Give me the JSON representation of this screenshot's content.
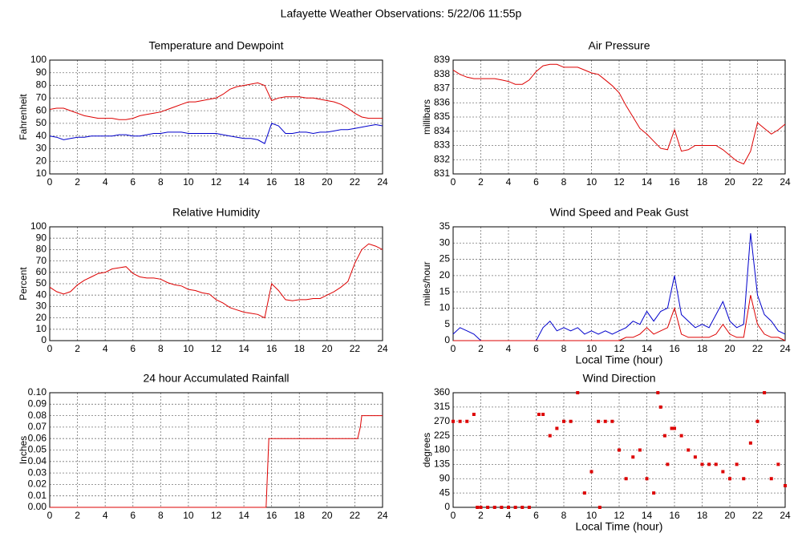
{
  "title": "Lafayette Weather Observations: 5/22/06 11:55p",
  "chart_data": [
    {
      "type": "line",
      "title": "Temperature and Dewpoint",
      "ylabel": "Fahrenheit",
      "x": [
        0,
        0.5,
        1,
        1.5,
        2,
        2.5,
        3,
        3.5,
        4,
        4.5,
        5,
        5.5,
        6,
        6.5,
        7,
        7.5,
        8,
        8.5,
        9,
        9.5,
        10,
        10.5,
        11,
        11.5,
        12,
        12.5,
        13,
        13.5,
        14,
        14.5,
        15,
        15.5,
        16,
        16.5,
        17,
        17.5,
        18,
        18.5,
        19,
        19.5,
        20,
        20.5,
        21,
        21.5,
        22,
        22.5,
        23,
        23.5,
        24
      ],
      "series": [
        {
          "color": "#dd0000",
          "values": [
            61,
            62,
            62,
            60,
            58,
            56,
            55,
            54,
            54,
            54,
            53,
            53,
            54,
            56,
            57,
            58,
            59,
            61,
            63,
            65,
            67,
            67,
            68,
            69,
            70,
            73,
            77,
            79,
            80,
            81,
            82,
            80,
            68,
            70,
            71,
            71,
            71,
            70,
            70,
            69,
            68,
            67,
            65,
            62,
            58,
            55,
            54,
            54,
            54
          ]
        },
        {
          "color": "#0000cc",
          "values": [
            40,
            39,
            37,
            38,
            39,
            39,
            40,
            40,
            40,
            40,
            41,
            41,
            40,
            40,
            41,
            42,
            42,
            43,
            43,
            43,
            42,
            42,
            42,
            42,
            42,
            41,
            40,
            39,
            38,
            38,
            37,
            34,
            50,
            48,
            42,
            42,
            43,
            43,
            42,
            43,
            43,
            44,
            45,
            45,
            46,
            47,
            48,
            49,
            48
          ]
        }
      ],
      "xlim": [
        0,
        24
      ],
      "xticks": [
        0,
        2,
        4,
        6,
        8,
        10,
        12,
        14,
        16,
        18,
        20,
        22,
        24
      ],
      "ylim": [
        10,
        100
      ],
      "yticks": [
        10,
        20,
        30,
        40,
        50,
        60,
        70,
        80,
        90,
        100
      ],
      "grid": true
    },
    {
      "type": "line",
      "title": "Air Pressure",
      "ylabel": "millibars",
      "x": [
        0,
        0.5,
        1,
        1.5,
        2,
        2.5,
        3,
        3.5,
        4,
        4.5,
        5,
        5.5,
        6,
        6.5,
        7,
        7.5,
        8,
        8.5,
        9,
        9.5,
        10,
        10.5,
        11,
        11.5,
        12,
        12.5,
        13,
        13.5,
        14,
        14.5,
        15,
        15.5,
        16,
        16.5,
        17,
        17.5,
        18,
        18.5,
        19,
        19.5,
        20,
        20.5,
        21,
        21.5,
        22,
        22.5,
        23,
        23.5,
        24
      ],
      "series": [
        {
          "color": "#dd0000",
          "values": [
            838.3,
            838.0,
            837.8,
            837.7,
            837.7,
            837.7,
            837.7,
            837.6,
            837.5,
            837.3,
            837.3,
            837.6,
            838.2,
            838.6,
            838.7,
            838.7,
            838.5,
            838.5,
            838.5,
            838.3,
            838.1,
            838.0,
            837.6,
            837.2,
            836.7,
            835.8,
            835.0,
            834.2,
            833.8,
            833.3,
            832.8,
            832.7,
            834.1,
            832.6,
            832.7,
            833.0,
            833.0,
            833.0,
            833.0,
            832.7,
            832.3,
            831.9,
            831.7,
            832.6,
            834.6,
            834.2,
            833.8,
            834.1,
            834.5
          ]
        }
      ],
      "xlim": [
        0,
        24
      ],
      "xticks": [
        0,
        2,
        4,
        6,
        8,
        10,
        12,
        14,
        16,
        18,
        20,
        22,
        24
      ],
      "ylim": [
        831,
        839
      ],
      "yticks": [
        831,
        832,
        833,
        834,
        835,
        836,
        837,
        838,
        839
      ],
      "grid": true
    },
    {
      "type": "line",
      "title": "Relative Humidity",
      "ylabel": "Percent",
      "x": [
        0,
        0.5,
        1,
        1.5,
        2,
        2.5,
        3,
        3.5,
        4,
        4.5,
        5,
        5.5,
        6,
        6.5,
        7,
        7.5,
        8,
        8.5,
        9,
        9.5,
        10,
        10.5,
        11,
        11.5,
        12,
        12.5,
        13,
        13.5,
        14,
        14.5,
        15,
        15.5,
        16,
        16.5,
        17,
        17.5,
        18,
        18.5,
        19,
        19.5,
        20,
        20.5,
        21,
        21.5,
        22,
        22.5,
        23,
        23.5,
        24
      ],
      "series": [
        {
          "color": "#dd0000",
          "values": [
            47,
            43,
            41,
            43,
            49,
            53,
            56,
            59,
            60,
            63,
            64,
            65,
            59,
            56,
            55,
            55,
            54,
            51,
            49,
            48,
            45,
            44,
            42,
            41,
            36,
            33,
            29,
            27,
            25,
            24,
            23,
            20,
            50,
            44,
            36,
            35,
            36,
            36,
            37,
            37,
            40,
            43,
            47,
            52,
            68,
            80,
            85,
            83,
            80
          ]
        }
      ],
      "xlim": [
        0,
        24
      ],
      "xticks": [
        0,
        2,
        4,
        6,
        8,
        10,
        12,
        14,
        16,
        18,
        20,
        22,
        24
      ],
      "ylim": [
        0,
        100
      ],
      "yticks": [
        0,
        10,
        20,
        30,
        40,
        50,
        60,
        70,
        80,
        90,
        100
      ],
      "grid": true
    },
    {
      "type": "line",
      "title": "Wind Speed and Peak Gust",
      "ylabel": "miles/hour",
      "xlabel": "Local Time (hour)",
      "x": [
        0,
        0.5,
        1,
        1.5,
        2,
        2.5,
        3,
        3.5,
        4,
        4.5,
        5,
        5.5,
        6,
        6.5,
        7,
        7.5,
        8,
        8.5,
        9,
        9.5,
        10,
        10.5,
        11,
        11.5,
        12,
        12.5,
        13,
        13.5,
        14,
        14.5,
        15,
        15.5,
        16,
        16.5,
        17,
        17.5,
        18,
        18.5,
        19,
        19.5,
        20,
        20.5,
        21,
        21.5,
        22,
        22.5,
        23,
        23.5,
        24
      ],
      "series": [
        {
          "color": "#0000cc",
          "values": [
            2,
            4,
            3,
            2,
            0,
            0,
            0,
            0,
            0,
            0,
            0,
            0,
            0,
            4,
            6,
            3,
            4,
            3,
            4,
            2,
            3,
            2,
            3,
            2,
            3,
            4,
            6,
            5,
            9,
            6,
            9,
            10,
            20,
            8,
            6,
            4,
            5,
            4,
            8,
            12,
            6,
            4,
            5,
            33,
            14,
            8,
            6,
            3,
            2
          ]
        },
        {
          "color": "#dd0000",
          "values": [
            0,
            0,
            0,
            0,
            0,
            0,
            0,
            0,
            0,
            0,
            0,
            0,
            0,
            0,
            0,
            0,
            0,
            0,
            0,
            0,
            0,
            0,
            0,
            0,
            0,
            1,
            1,
            2,
            4,
            2,
            3,
            4,
            10,
            2,
            1,
            1,
            1,
            1,
            2,
            5,
            2,
            1,
            1,
            14,
            5,
            2,
            1,
            1,
            0
          ]
        }
      ],
      "xlim": [
        0,
        24
      ],
      "xticks": [
        0,
        2,
        4,
        6,
        8,
        10,
        12,
        14,
        16,
        18,
        20,
        22,
        24
      ],
      "ylim": [
        0,
        35
      ],
      "yticks": [
        0,
        5,
        10,
        15,
        20,
        25,
        30,
        35
      ],
      "grid": true
    },
    {
      "type": "line",
      "title": "24 hour Accumulated Rainfall",
      "ylabel": "Inches",
      "x": [
        0,
        15.6,
        15.8,
        22.2,
        22.4,
        22.5,
        24
      ],
      "series": [
        {
          "color": "#dd0000",
          "values": [
            0,
            0,
            0.06,
            0.06,
            0.07,
            0.08,
            0.08
          ]
        }
      ],
      "xlim": [
        0,
        24
      ],
      "xticks": [
        0,
        2,
        4,
        6,
        8,
        10,
        12,
        14,
        16,
        18,
        20,
        22,
        24
      ],
      "ylim": [
        0,
        0.1
      ],
      "yticks": [
        {
          "value": 0,
          "label": "0.00"
        },
        {
          "value": 0.01,
          "label": "0.01"
        },
        {
          "value": 0.02,
          "label": "0.02"
        },
        {
          "value": 0.03,
          "label": "0.03"
        },
        {
          "value": 0.04,
          "label": "0.04"
        },
        {
          "value": 0.05,
          "label": "0.05"
        },
        {
          "value": 0.06,
          "label": "0.06"
        },
        {
          "value": 0.07,
          "label": "0.07"
        },
        {
          "value": 0.08,
          "label": "0.08"
        },
        {
          "value": 0.09,
          "label": "0.09"
        },
        {
          "value": 0.1,
          "label": "0.10"
        }
      ],
      "grid": true
    },
    {
      "type": "scatter",
      "title": "Wind Direction",
      "ylabel": "degrees",
      "xlabel": "Local Time (hour)",
      "x": [
        0,
        0.5,
        1,
        1.5,
        1.75,
        2,
        2.5,
        3,
        3.5,
        4,
        4.5,
        5,
        5.5,
        6.2,
        6.5,
        7,
        7.5,
        8,
        8.5,
        9,
        9.5,
        10,
        10.5,
        10.6,
        11,
        11.5,
        12,
        12.5,
        13,
        13.5,
        14,
        14.5,
        14.8,
        15,
        15.3,
        15.5,
        15.8,
        16,
        16.5,
        17,
        17.5,
        18,
        18.5,
        19,
        19.5,
        20,
        20.5,
        21,
        21.5,
        22,
        22.5,
        23,
        23.5,
        24
      ],
      "series": [
        {
          "color": "#dd0000",
          "values": [
            270,
            270,
            270,
            292,
            0,
            0,
            0,
            0,
            0,
            0,
            0,
            0,
            0,
            292,
            292,
            225,
            248,
            270,
            270,
            360,
            45,
            112,
            270,
            0,
            270,
            270,
            180,
            90,
            158,
            180,
            90,
            45,
            360,
            315,
            225,
            135,
            248,
            248,
            225,
            180,
            158,
            135,
            135,
            135,
            112,
            90,
            135,
            90,
            202,
            270,
            360,
            90,
            135,
            68
          ]
        }
      ],
      "xlim": [
        0,
        24
      ],
      "xticks": [
        0,
        2,
        4,
        6,
        8,
        10,
        12,
        14,
        16,
        18,
        20,
        22,
        24
      ],
      "ylim": [
        0,
        360
      ],
      "yticks": [
        0,
        45,
        90,
        135,
        180,
        225,
        270,
        315,
        360
      ],
      "grid": true
    }
  ]
}
